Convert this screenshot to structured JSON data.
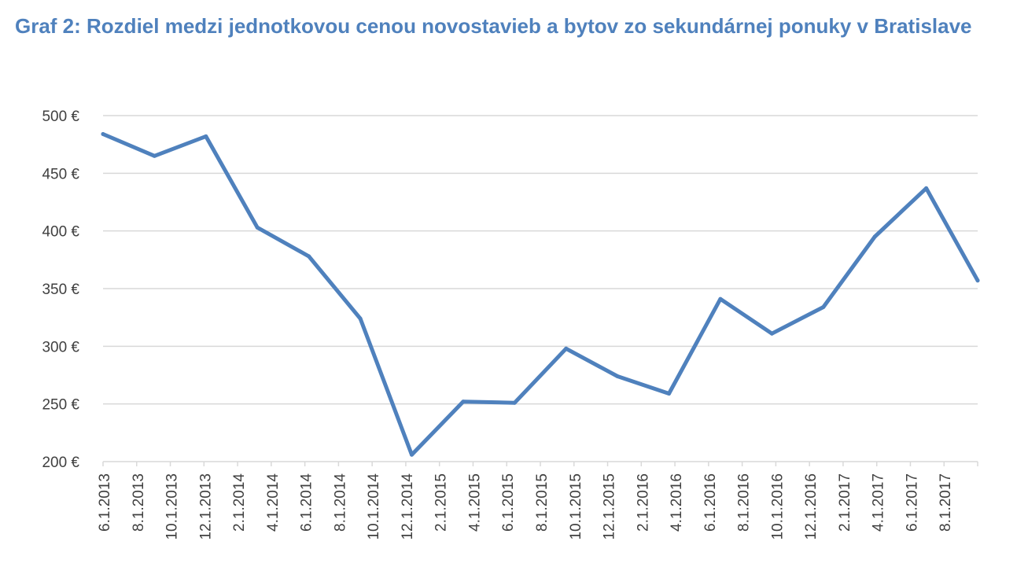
{
  "chart_data": {
    "type": "line",
    "title": "Graf 2: Rozdiel medzi jednotkovou cenou novostavieb a bytov zo sekundárnej ponuky v Bratislave",
    "xlabel": "",
    "ylabel": "",
    "ylim": [
      200,
      500
    ],
    "yticks": [
      200,
      250,
      300,
      350,
      400,
      450,
      500
    ],
    "ytick_labels": [
      "200 €",
      "250 €",
      "300 €",
      "350 €",
      "400 €",
      "450 €",
      "500 €"
    ],
    "x_tick_labels": [
      "6.1.2013",
      "8.1.2013",
      "10.1.2013",
      "12.1.2013",
      "2.1.2014",
      "4.1.2014",
      "6.1.2014",
      "8.1.2014",
      "10.1.2014",
      "12.1.2014",
      "2.1.2015",
      "4.1.2015",
      "6.1.2015",
      "8.1.2015",
      "10.1.2015",
      "12.1.2015",
      "2.1.2016",
      "4.1.2016",
      "6.1.2016",
      "8.1.2016",
      "10.1.2016",
      "12.1.2016",
      "2.1.2017",
      "4.1.2017",
      "6.1.2017",
      "8.1.2017"
    ],
    "x_start": "2013-06-01",
    "x_end": "2017-09-01",
    "grid": true,
    "legend": "none",
    "series": [
      {
        "color": "#4F81BD",
        "x": [
          "2013-06-01",
          "2013-09-01",
          "2013-12-01",
          "2014-03-01",
          "2014-06-01",
          "2014-09-01",
          "2014-12-01",
          "2015-03-01",
          "2015-06-01",
          "2015-09-01",
          "2015-12-01",
          "2016-03-01",
          "2016-06-01",
          "2016-09-01",
          "2016-12-01",
          "2017-03-01",
          "2017-06-01",
          "2017-09-01"
        ],
        "values": [
          484,
          465,
          482,
          403,
          378,
          324,
          206,
          252,
          251,
          298,
          274,
          259,
          341,
          311,
          334,
          395,
          437,
          357
        ]
      }
    ]
  }
}
